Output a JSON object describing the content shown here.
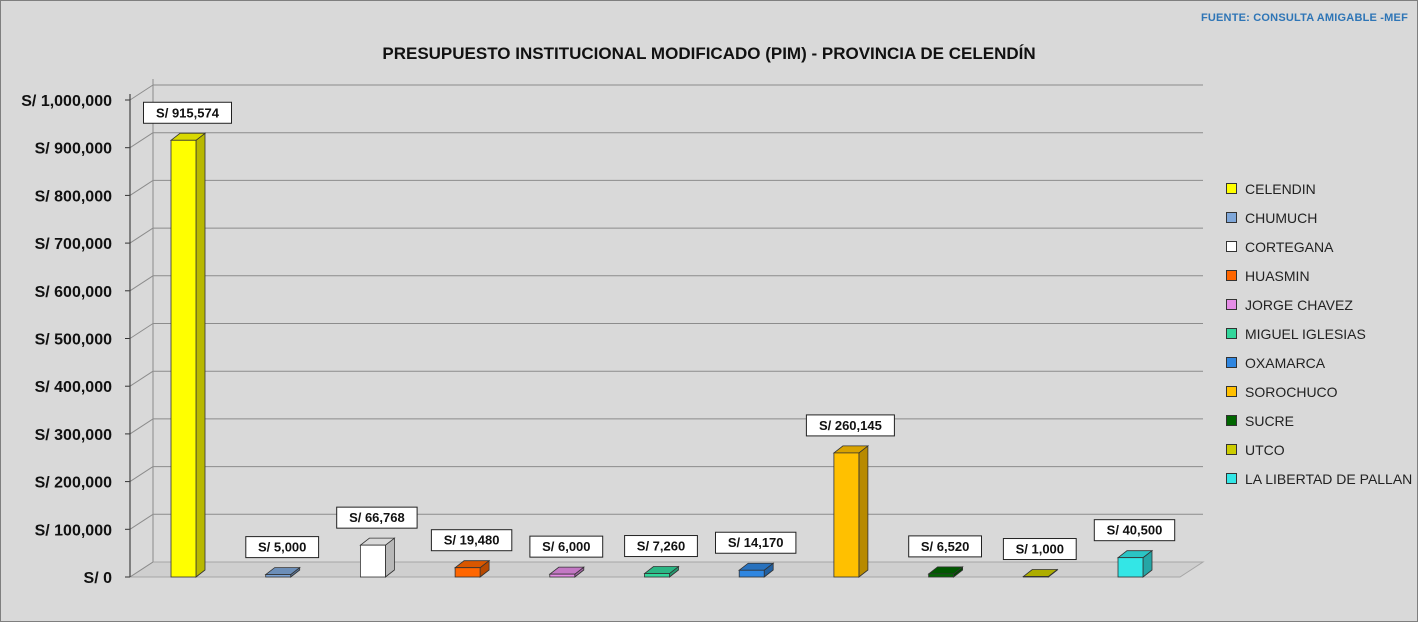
{
  "source_note": "FUENTE: CONSULTA AMIGABLE -MEF",
  "chart_data": {
    "type": "bar",
    "title": "PRESUPUESTO INSTITUCIONAL MODIFICADO (PIM) - PROVINCIA DE CELENDÍN",
    "xlabel": "",
    "ylabel": "",
    "ylim": [
      0,
      1000000
    ],
    "yticks": [
      0,
      100000,
      200000,
      300000,
      400000,
      500000,
      600000,
      700000,
      800000,
      900000,
      1000000
    ],
    "ytick_labels": [
      "S/ 0",
      "S/ 100,000",
      "S/ 200,000",
      "S/ 300,000",
      "S/ 400,000",
      "S/ 500,000",
      "S/ 600,000",
      "S/ 700,000",
      "S/ 800,000",
      "S/ 900,000",
      "S/ 1,000,000"
    ],
    "grid": true,
    "legend_position": "right",
    "categories": [
      "CELENDIN",
      "CHUMUCH",
      "CORTEGANA",
      "HUASMIN",
      "JORGE CHAVEZ",
      "MIGUEL IGLESIAS",
      "OXAMARCA",
      "SOROCHUCO",
      "SUCRE",
      "UTCO",
      "LA LIBERTAD DE PALLAN"
    ],
    "values": [
      915574,
      5000,
      66768,
      19480,
      6000,
      7260,
      14170,
      260145,
      6520,
      1000,
      40500
    ],
    "data_labels": [
      "S/ 915,574",
      "S/ 5,000",
      "S/ 66,768",
      "S/ 19,480",
      "S/ 6,000",
      "S/ 7,260",
      "S/ 14,170",
      "S/ 260,145",
      "S/ 6,520",
      "S/ 1,000",
      "S/ 40,500"
    ],
    "colors": [
      "#ffff00",
      "#7fa7d9",
      "#ffffff",
      "#ff6600",
      "#e58de6",
      "#33d69b",
      "#2f86e0",
      "#ffc000",
      "#006600",
      "#cccc00",
      "#33e6e6"
    ]
  }
}
